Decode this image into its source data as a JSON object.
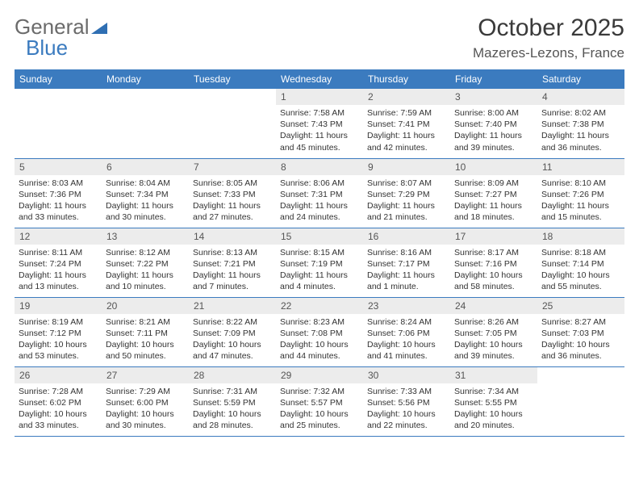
{
  "brand": {
    "part1": "General",
    "part2": "Blue"
  },
  "title": "October 2025",
  "location": "Mazeres-Lezons, France",
  "calendar": {
    "header_bg": "#3b7bbf",
    "header_fg": "#ffffff",
    "daynum_bg": "#ececec",
    "rule_color": "#3b7bbf",
    "day_headers": [
      "Sunday",
      "Monday",
      "Tuesday",
      "Wednesday",
      "Thursday",
      "Friday",
      "Saturday"
    ],
    "weeks": [
      [
        {
          "n": "",
          "sr": "",
          "ss": "",
          "dl": "",
          "empty": true
        },
        {
          "n": "",
          "sr": "",
          "ss": "",
          "dl": "",
          "empty": true
        },
        {
          "n": "",
          "sr": "",
          "ss": "",
          "dl": "",
          "empty": true
        },
        {
          "n": "1",
          "sr": "7:58 AM",
          "ss": "7:43 PM",
          "dl": "11 hours and 45 minutes."
        },
        {
          "n": "2",
          "sr": "7:59 AM",
          "ss": "7:41 PM",
          "dl": "11 hours and 42 minutes."
        },
        {
          "n": "3",
          "sr": "8:00 AM",
          "ss": "7:40 PM",
          "dl": "11 hours and 39 minutes."
        },
        {
          "n": "4",
          "sr": "8:02 AM",
          "ss": "7:38 PM",
          "dl": "11 hours and 36 minutes."
        }
      ],
      [
        {
          "n": "5",
          "sr": "8:03 AM",
          "ss": "7:36 PM",
          "dl": "11 hours and 33 minutes."
        },
        {
          "n": "6",
          "sr": "8:04 AM",
          "ss": "7:34 PM",
          "dl": "11 hours and 30 minutes."
        },
        {
          "n": "7",
          "sr": "8:05 AM",
          "ss": "7:33 PM",
          "dl": "11 hours and 27 minutes."
        },
        {
          "n": "8",
          "sr": "8:06 AM",
          "ss": "7:31 PM",
          "dl": "11 hours and 24 minutes."
        },
        {
          "n": "9",
          "sr": "8:07 AM",
          "ss": "7:29 PM",
          "dl": "11 hours and 21 minutes."
        },
        {
          "n": "10",
          "sr": "8:09 AM",
          "ss": "7:27 PM",
          "dl": "11 hours and 18 minutes."
        },
        {
          "n": "11",
          "sr": "8:10 AM",
          "ss": "7:26 PM",
          "dl": "11 hours and 15 minutes."
        }
      ],
      [
        {
          "n": "12",
          "sr": "8:11 AM",
          "ss": "7:24 PM",
          "dl": "11 hours and 13 minutes."
        },
        {
          "n": "13",
          "sr": "8:12 AM",
          "ss": "7:22 PM",
          "dl": "11 hours and 10 minutes."
        },
        {
          "n": "14",
          "sr": "8:13 AM",
          "ss": "7:21 PM",
          "dl": "11 hours and 7 minutes."
        },
        {
          "n": "15",
          "sr": "8:15 AM",
          "ss": "7:19 PM",
          "dl": "11 hours and 4 minutes."
        },
        {
          "n": "16",
          "sr": "8:16 AM",
          "ss": "7:17 PM",
          "dl": "11 hours and 1 minute."
        },
        {
          "n": "17",
          "sr": "8:17 AM",
          "ss": "7:16 PM",
          "dl": "10 hours and 58 minutes."
        },
        {
          "n": "18",
          "sr": "8:18 AM",
          "ss": "7:14 PM",
          "dl": "10 hours and 55 minutes."
        }
      ],
      [
        {
          "n": "19",
          "sr": "8:19 AM",
          "ss": "7:12 PM",
          "dl": "10 hours and 53 minutes."
        },
        {
          "n": "20",
          "sr": "8:21 AM",
          "ss": "7:11 PM",
          "dl": "10 hours and 50 minutes."
        },
        {
          "n": "21",
          "sr": "8:22 AM",
          "ss": "7:09 PM",
          "dl": "10 hours and 47 minutes."
        },
        {
          "n": "22",
          "sr": "8:23 AM",
          "ss": "7:08 PM",
          "dl": "10 hours and 44 minutes."
        },
        {
          "n": "23",
          "sr": "8:24 AM",
          "ss": "7:06 PM",
          "dl": "10 hours and 41 minutes."
        },
        {
          "n": "24",
          "sr": "8:26 AM",
          "ss": "7:05 PM",
          "dl": "10 hours and 39 minutes."
        },
        {
          "n": "25",
          "sr": "8:27 AM",
          "ss": "7:03 PM",
          "dl": "10 hours and 36 minutes."
        }
      ],
      [
        {
          "n": "26",
          "sr": "7:28 AM",
          "ss": "6:02 PM",
          "dl": "10 hours and 33 minutes."
        },
        {
          "n": "27",
          "sr": "7:29 AM",
          "ss": "6:00 PM",
          "dl": "10 hours and 30 minutes."
        },
        {
          "n": "28",
          "sr": "7:31 AM",
          "ss": "5:59 PM",
          "dl": "10 hours and 28 minutes."
        },
        {
          "n": "29",
          "sr": "7:32 AM",
          "ss": "5:57 PM",
          "dl": "10 hours and 25 minutes."
        },
        {
          "n": "30",
          "sr": "7:33 AM",
          "ss": "5:56 PM",
          "dl": "10 hours and 22 minutes."
        },
        {
          "n": "31",
          "sr": "7:34 AM",
          "ss": "5:55 PM",
          "dl": "10 hours and 20 minutes."
        },
        {
          "n": "",
          "sr": "",
          "ss": "",
          "dl": "",
          "empty": true
        }
      ]
    ],
    "labels": {
      "sunrise": "Sunrise:",
      "sunset": "Sunset:",
      "daylight": "Daylight:"
    }
  }
}
